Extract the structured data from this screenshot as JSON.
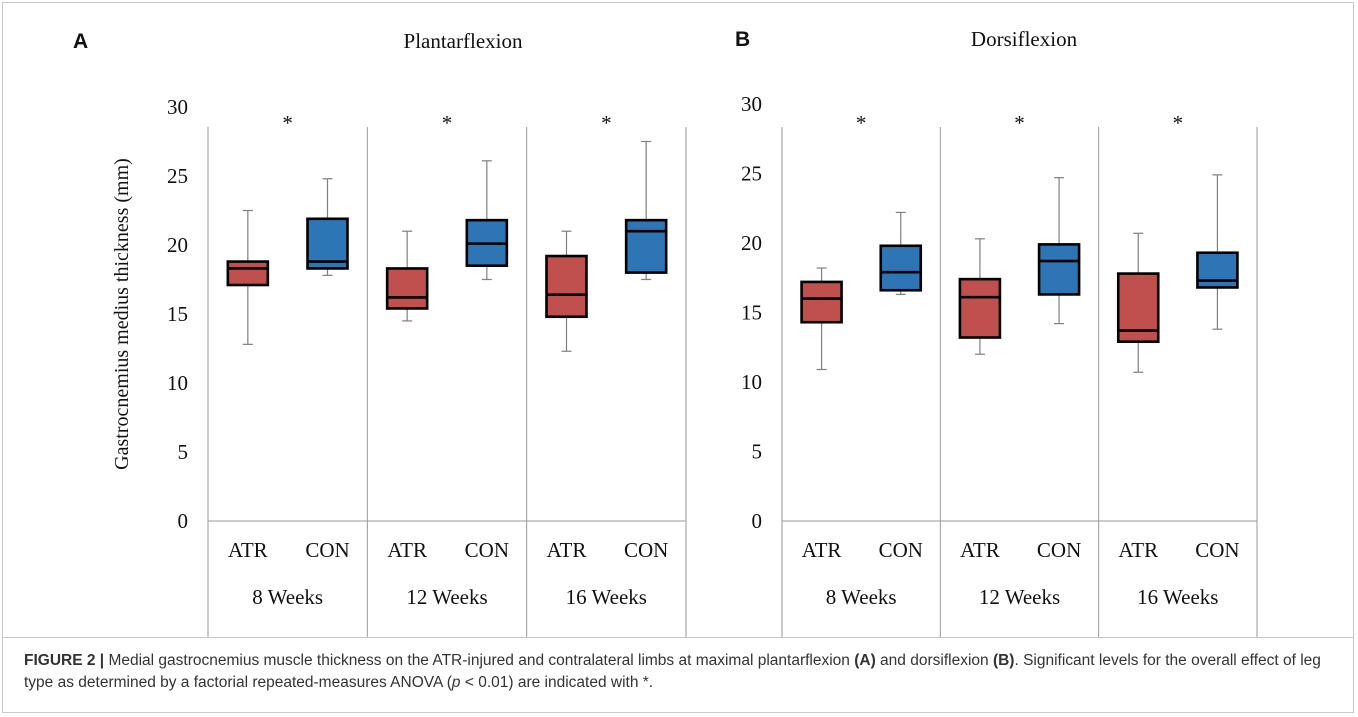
{
  "chart_data": [
    {
      "type": "box",
      "panel_label": "A",
      "title": "Plantarflexion",
      "ylabel": "Gastrocnemius medius thickness (mm)",
      "ylim": [
        0,
        30
      ],
      "yticks": [
        0,
        5,
        10,
        15,
        20,
        25,
        30
      ],
      "groups": [
        "8 Weeks",
        "12 Weeks",
        "16 Weeks"
      ],
      "categories": [
        "ATR",
        "CON"
      ],
      "significance_marker": "*",
      "colors": {
        "ATR": "#c0504d",
        "CON": "#2e75b6"
      },
      "boxes": [
        {
          "group": "8 Weeks",
          "category": "ATR",
          "min": 12.8,
          "q1": 17.1,
          "median": 18.3,
          "q3": 18.8,
          "max": 22.5
        },
        {
          "group": "8 Weeks",
          "category": "CON",
          "min": 17.8,
          "q1": 18.3,
          "median": 18.8,
          "q3": 21.9,
          "max": 24.8
        },
        {
          "group": "12 Weeks",
          "category": "ATR",
          "min": 14.5,
          "q1": 15.4,
          "median": 16.2,
          "q3": 18.3,
          "max": 21.0
        },
        {
          "group": "12 Weeks",
          "category": "CON",
          "min": 17.5,
          "q1": 18.5,
          "median": 20.1,
          "q3": 21.8,
          "max": 26.1
        },
        {
          "group": "16 Weeks",
          "category": "ATR",
          "min": 12.3,
          "q1": 14.8,
          "median": 16.4,
          "q3": 19.2,
          "max": 21.0
        },
        {
          "group": "16 Weeks",
          "category": "CON",
          "min": 17.5,
          "q1": 18.0,
          "median": 21.0,
          "q3": 21.8,
          "max": 27.5
        }
      ]
    },
    {
      "type": "box",
      "panel_label": "B",
      "title": "Dorsiflexion",
      "ylabel": "",
      "ylim": [
        0,
        30
      ],
      "yticks": [
        0,
        5,
        10,
        15,
        20,
        25,
        30
      ],
      "groups": [
        "8 Weeks",
        "12 Weeks",
        "16 Weeks"
      ],
      "categories": [
        "ATR",
        "CON"
      ],
      "significance_marker": "*",
      "colors": {
        "ATR": "#c0504d",
        "CON": "#2e75b6"
      },
      "boxes": [
        {
          "group": "8 Weeks",
          "category": "ATR",
          "min": 10.9,
          "q1": 14.3,
          "median": 16.0,
          "q3": 17.2,
          "max": 18.2
        },
        {
          "group": "8 Weeks",
          "category": "CON",
          "min": 16.3,
          "q1": 16.6,
          "median": 17.9,
          "q3": 19.8,
          "max": 22.2
        },
        {
          "group": "12 Weeks",
          "category": "ATR",
          "min": 12.0,
          "q1": 13.2,
          "median": 16.1,
          "q3": 17.4,
          "max": 20.3
        },
        {
          "group": "12 Weeks",
          "category": "CON",
          "min": 14.2,
          "q1": 16.3,
          "median": 18.7,
          "q3": 19.9,
          "max": 24.7
        },
        {
          "group": "16 Weeks",
          "category": "ATR",
          "min": 10.7,
          "q1": 12.9,
          "median": 13.7,
          "q3": 17.8,
          "max": 20.7
        },
        {
          "group": "16 Weeks",
          "category": "CON",
          "min": 13.8,
          "q1": 16.8,
          "median": 17.3,
          "q3": 19.3,
          "max": 24.9
        }
      ]
    }
  ],
  "caption": {
    "figure_label": "FIGURE 2 |",
    "text_1": " Medial gastrocnemius muscle thickness on the ATR-injured and contralateral limbs at maximal plantarflexion ",
    "ref_a": "(A)",
    "text_2": " and dorsiflexion ",
    "ref_b": "(B)",
    "text_3": ". Significant levels for the overall effect of leg type as determined by a factorial repeated-measures ANOVA (",
    "p_symbol": "p",
    "text_4": " < 0.01) are indicated with *."
  }
}
